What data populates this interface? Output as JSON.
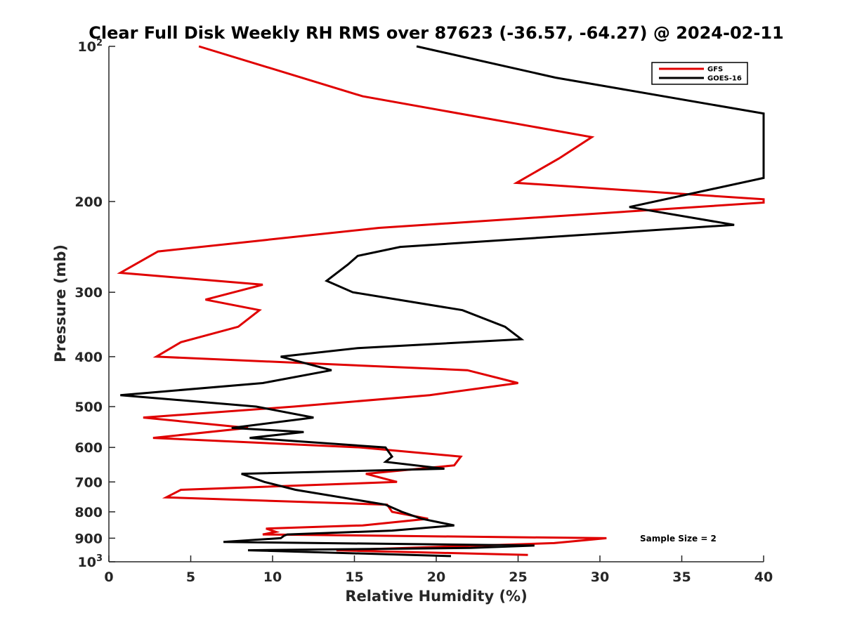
{
  "chart_data": {
    "type": "line",
    "title": "Clear Full Disk Weekly RH RMS over 87623 (-36.57, -64.27) @ 2024-02-11",
    "xlabel": "Relative Humidity (%)",
    "ylabel": "Pressure (mb)",
    "xlim": [
      0,
      40
    ],
    "ylim": [
      100,
      1000
    ],
    "y_scale": "log",
    "y_reversed": true,
    "grid": false,
    "legend_position": "top-right",
    "x_ticks": [
      "0",
      "5",
      "10",
      "15",
      "20",
      "25",
      "30",
      "35",
      "40"
    ],
    "y_ticks": [
      {
        "value": 100,
        "base": "10",
        "exp": "2"
      },
      {
        "value": 200,
        "label": "200"
      },
      {
        "value": 300,
        "label": "300"
      },
      {
        "value": 400,
        "label": "400"
      },
      {
        "value": 500,
        "label": "500"
      },
      {
        "value": 600,
        "label": "600"
      },
      {
        "value": 700,
        "label": "700"
      },
      {
        "value": 800,
        "label": "800"
      },
      {
        "value": 900,
        "label": "900"
      },
      {
        "value": 1000,
        "base": "10",
        "exp": "3"
      }
    ],
    "annotation": "Sample Size = 2",
    "series": [
      {
        "name": "GFS",
        "color": "#e00000",
        "points": [
          [
            5.5,
            100
          ],
          [
            15.5,
            125
          ],
          [
            29.5,
            150
          ],
          [
            27.5,
            165
          ],
          [
            24.9,
            184
          ],
          [
            40.0,
            198
          ],
          [
            40.0,
            201
          ],
          [
            16.5,
            225
          ],
          [
            3.0,
            250
          ],
          [
            0.7,
            275
          ],
          [
            9.4,
            290
          ],
          [
            5.9,
            310
          ],
          [
            9.2,
            325
          ],
          [
            7.9,
            350
          ],
          [
            4.4,
            375
          ],
          [
            2.9,
            400
          ],
          [
            21.9,
            425
          ],
          [
            25.0,
            450
          ],
          [
            19.6,
            475
          ],
          [
            11.3,
            500
          ],
          [
            2.1,
            525
          ],
          [
            8.5,
            550
          ],
          [
            2.7,
            575
          ],
          [
            15.4,
            600
          ],
          [
            21.5,
            625
          ],
          [
            21.1,
            650
          ],
          [
            15.7,
            675
          ],
          [
            17.6,
            700
          ],
          [
            4.4,
            725
          ],
          [
            3.5,
            750
          ],
          [
            17.0,
            775
          ],
          [
            17.3,
            800
          ],
          [
            19.5,
            825
          ],
          [
            15.5,
            850
          ],
          [
            9.6,
            862
          ],
          [
            10.2,
            875
          ],
          [
            9.4,
            885
          ],
          [
            30.4,
            900
          ],
          [
            27.2,
            920
          ],
          [
            13.9,
            950
          ],
          [
            25.6,
            970
          ]
        ]
      },
      {
        "name": "GOES-16",
        "color": "#000000",
        "points": [
          [
            18.8,
            100
          ],
          [
            27.3,
            115
          ],
          [
            40.0,
            135
          ],
          [
            40.0,
            180
          ],
          [
            31.8,
            205
          ],
          [
            38.2,
            222
          ],
          [
            17.8,
            245
          ],
          [
            15.2,
            255
          ],
          [
            14.6,
            265
          ],
          [
            13.3,
            285
          ],
          [
            14.9,
            300
          ],
          [
            21.6,
            325
          ],
          [
            24.2,
            350
          ],
          [
            25.2,
            370
          ],
          [
            15.2,
            385
          ],
          [
            10.5,
            400
          ],
          [
            13.6,
            425
          ],
          [
            9.4,
            450
          ],
          [
            0.7,
            475
          ],
          [
            9.0,
            500
          ],
          [
            12.5,
            525
          ],
          [
            7.5,
            550
          ],
          [
            11.9,
            560
          ],
          [
            8.6,
            575
          ],
          [
            16.9,
            600
          ],
          [
            17.3,
            625
          ],
          [
            16.9,
            640
          ],
          [
            20.5,
            660
          ],
          [
            8.1,
            675
          ],
          [
            9.5,
            700
          ],
          [
            11.4,
            725
          ],
          [
            16.9,
            775
          ],
          [
            17.9,
            800
          ],
          [
            19.1,
            825
          ],
          [
            21.1,
            850
          ],
          [
            17.3,
            870
          ],
          [
            10.9,
            885
          ],
          [
            10.7,
            890
          ],
          [
            10.5,
            900
          ],
          [
            7.0,
            915
          ],
          [
            26.0,
            930
          ],
          [
            22.1,
            940
          ],
          [
            8.5,
            950
          ],
          [
            20.9,
            975
          ]
        ]
      }
    ]
  }
}
